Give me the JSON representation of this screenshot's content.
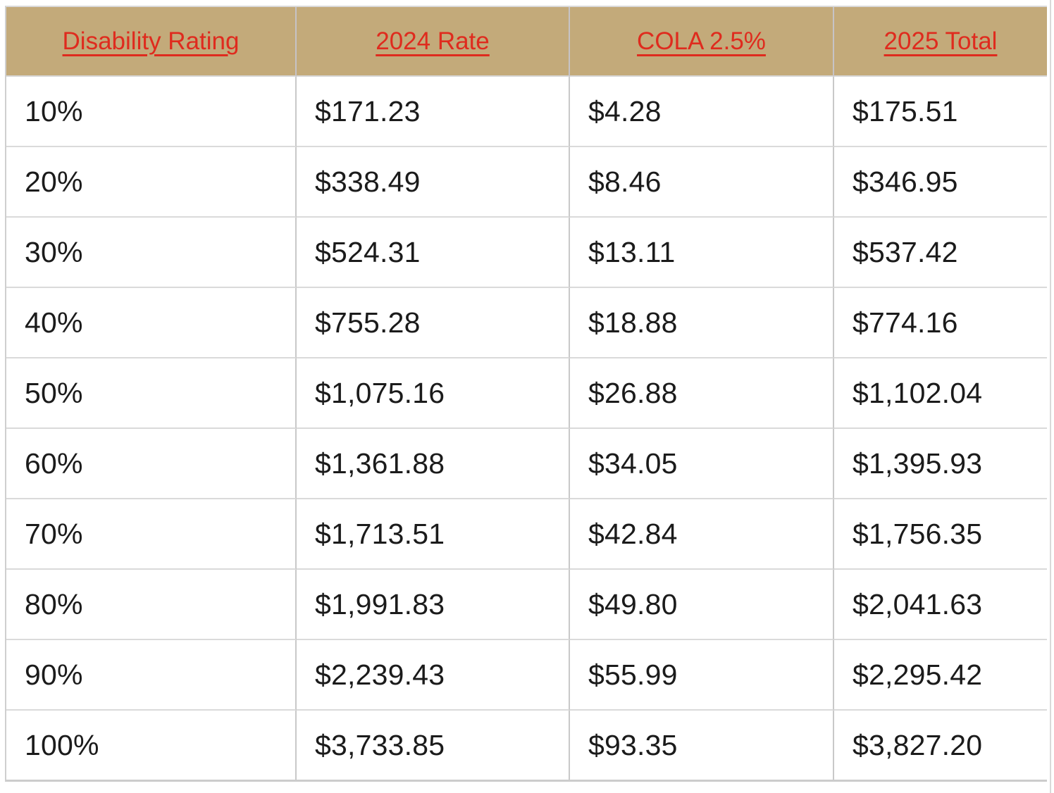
{
  "table": {
    "columns": [
      {
        "label": "Disability Rating"
      },
      {
        "label": "2024 Rate"
      },
      {
        "label": "COLA 2.5%"
      },
      {
        "label": "2025 Total"
      }
    ],
    "rows": [
      {
        "rating": "10%",
        "rate_2024": "$171.23",
        "cola": "$4.28",
        "total_2025": "$175.51"
      },
      {
        "rating": "20%",
        "rate_2024": "$338.49",
        "cola": "$8.46",
        "total_2025": "$346.95"
      },
      {
        "rating": "30%",
        "rate_2024": "$524.31",
        "cola": "$13.11",
        "total_2025": "$537.42"
      },
      {
        "rating": "40%",
        "rate_2024": "$755.28",
        "cola": "$18.88",
        "total_2025": "$774.16"
      },
      {
        "rating": "50%",
        "rate_2024": "$1,075.16",
        "cola": "$26.88",
        "total_2025": "$1,102.04"
      },
      {
        "rating": "60%",
        "rate_2024": "$1,361.88",
        "cola": "$34.05",
        "total_2025": "$1,395.93"
      },
      {
        "rating": "70%",
        "rate_2024": "$1,713.51",
        "cola": "$42.84",
        "total_2025": "$1,756.35"
      },
      {
        "rating": "80%",
        "rate_2024": "$1,991.83",
        "cola": "$49.80",
        "total_2025": "$2,041.63"
      },
      {
        "rating": "90%",
        "rate_2024": "$2,239.43",
        "cola": "$55.99",
        "total_2025": "$2,295.42"
      },
      {
        "rating": "100%",
        "rate_2024": "$3,733.85",
        "cola": "$93.35",
        "total_2025": "$3,827.20"
      }
    ],
    "colors": {
      "header_background": "#c3aa7a",
      "header_text": "#df2b1e",
      "body_text": "#1b1b1b",
      "column_grid_line": "#c9c9c9",
      "row_grid_line": "#dadada"
    }
  },
  "chart_data": {
    "type": "table",
    "title": "",
    "columns": [
      "Disability Rating",
      "2024 Rate",
      "COLA 2.5%",
      "2025 Total"
    ],
    "rows": [
      [
        "10%",
        "$171.23",
        "$4.28",
        "$175.51"
      ],
      [
        "20%",
        "$338.49",
        "$8.46",
        "$346.95"
      ],
      [
        "30%",
        "$524.31",
        "$13.11",
        "$537.42"
      ],
      [
        "40%",
        "$755.28",
        "$18.88",
        "$774.16"
      ],
      [
        "50%",
        "$1,075.16",
        "$26.88",
        "$1,102.04"
      ],
      [
        "60%",
        "$1,361.88",
        "$34.05",
        "$1,395.93"
      ],
      [
        "70%",
        "$1,713.51",
        "$42.84",
        "$1,756.35"
      ],
      [
        "80%",
        "$1,991.83",
        "$49.80",
        "$2,041.63"
      ],
      [
        "90%",
        "$2,239.43",
        "$55.99",
        "$2,295.42"
      ],
      [
        "100%",
        "$3,733.85",
        "$93.35",
        "$3,827.20"
      ]
    ]
  }
}
